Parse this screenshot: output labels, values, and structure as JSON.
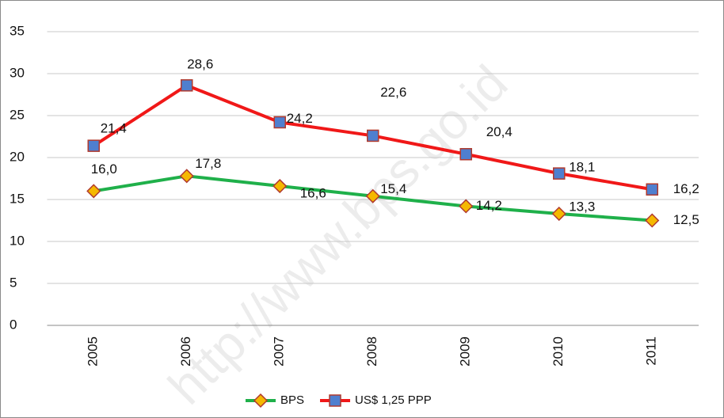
{
  "chart_data": {
    "type": "line",
    "categories": [
      "2005",
      "2006",
      "2007",
      "2008",
      "2009",
      "2010",
      "2011"
    ],
    "series": [
      {
        "name": "BPS",
        "color": "#1fb04a",
        "marker_color": "#f5b800",
        "marker": "diamond",
        "values": [
          16.0,
          17.8,
          16.6,
          15.4,
          14.2,
          13.3,
          12.5
        ],
        "value_labels": [
          "16,0",
          "17,8",
          "16,6",
          "15,4",
          "14,2",
          "13,3",
          "12,5"
        ]
      },
      {
        "name": "US$ 1,25 PPP",
        "color": "#f01818",
        "marker_color": "#4f7fcf",
        "marker": "square",
        "values": [
          21.4,
          28.6,
          24.2,
          22.6,
          20.4,
          18.1,
          16.2
        ],
        "value_labels": [
          "21,4",
          "28,6",
          "24,2",
          "22,6",
          "20,4",
          "18,1",
          "16,2"
        ]
      }
    ],
    "ylim": [
      0,
      35
    ],
    "yticks": [
      0,
      5,
      10,
      15,
      20,
      25,
      30,
      35
    ],
    "grid": true,
    "legend": "bottom",
    "watermark": "http://www.bps.go.id"
  }
}
